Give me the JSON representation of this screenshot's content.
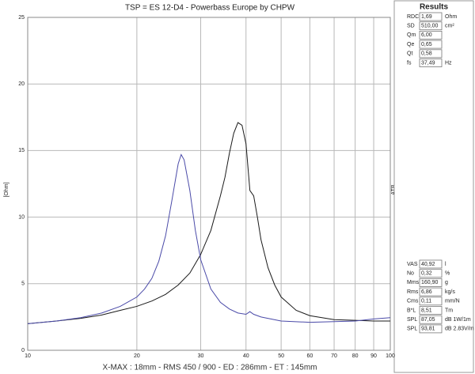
{
  "chart_data": {
    "type": "line",
    "title": "TSP = ES 12-D4  -  Powerbass Europe by CHPW",
    "footer": "X-MAX : 18mm  -  RMS 450 / 900  -  ED : 286mm  -  ET : 145mm",
    "y_label": "[Ohm]",
    "y2_label": "ATB",
    "xscale": "log",
    "xlim": [
      10,
      100
    ],
    "xticks": [
      10,
      20,
      30,
      40,
      50,
      60,
      70,
      80,
      90,
      100
    ],
    "ylim": [
      0,
      25
    ],
    "yticks": [
      0,
      5,
      10,
      15,
      20,
      25
    ],
    "grid": true,
    "series": [
      {
        "color": "#1a1a1a",
        "x": [
          10,
          12,
          14,
          16,
          18,
          20,
          22,
          24,
          26,
          28,
          30,
          32,
          34,
          35,
          36,
          37,
          38,
          39,
          40,
          41,
          42,
          43,
          44,
          46,
          48,
          50,
          55,
          60,
          70,
          80,
          90,
          100
        ],
        "values": [
          2.0,
          2.2,
          2.4,
          2.65,
          3.0,
          3.3,
          3.7,
          4.2,
          4.9,
          5.8,
          7.2,
          9.0,
          11.6,
          13.0,
          14.8,
          16.3,
          17.1,
          16.9,
          15.5,
          12.0,
          11.6,
          10.0,
          8.3,
          6.2,
          4.9,
          4.0,
          3.0,
          2.6,
          2.3,
          2.25,
          2.2,
          2.2
        ]
      },
      {
        "color": "#4a4aa8",
        "x": [
          10,
          12,
          14,
          16,
          18,
          20,
          21,
          22,
          23,
          24,
          25,
          26,
          26.5,
          27,
          28,
          29,
          30,
          32,
          34,
          36,
          38,
          40,
          41,
          42,
          44,
          50,
          60,
          70,
          80,
          90,
          100
        ],
        "values": [
          2.0,
          2.2,
          2.45,
          2.8,
          3.3,
          4.0,
          4.6,
          5.4,
          6.7,
          8.6,
          11.3,
          14.0,
          14.7,
          14.3,
          12.0,
          9.0,
          6.8,
          4.6,
          3.6,
          3.1,
          2.8,
          2.7,
          2.9,
          2.7,
          2.5,
          2.2,
          2.1,
          2.15,
          2.2,
          2.35,
          2.45
        ]
      }
    ]
  },
  "results": {
    "title": "Results",
    "upper": [
      {
        "label": "RDC",
        "value": "1,69",
        "unit": "Ohm"
      },
      {
        "label": "SD",
        "value": "510,00",
        "unit": "cm²"
      },
      {
        "label": "Qm",
        "value": "6,00"
      },
      {
        "label": "Qe",
        "value": "0,65"
      },
      {
        "label": "Qt",
        "value": "0,58"
      },
      {
        "label": "fs",
        "value": "37,49",
        "unit": "Hz"
      }
    ],
    "lower": [
      {
        "label": "VAS",
        "value": "40,92",
        "unit": "l"
      },
      {
        "label": "No",
        "value": "0,32",
        "unit": "%"
      },
      {
        "label": "Mms",
        "value": "160,90",
        "unit": "g"
      },
      {
        "label": "Rms",
        "value": "6,86",
        "unit": "kg/s"
      },
      {
        "label": "Cms",
        "value": "0,11",
        "unit": "mm/N"
      },
      {
        "label": "B*L",
        "value": "8,51",
        "unit": "Tm"
      },
      {
        "label": "SPL",
        "value": "87,05",
        "unit": "dB 1W/1m"
      },
      {
        "label": "SPL",
        "value": "93,81",
        "unit": "dB 2.83V/m"
      }
    ]
  }
}
